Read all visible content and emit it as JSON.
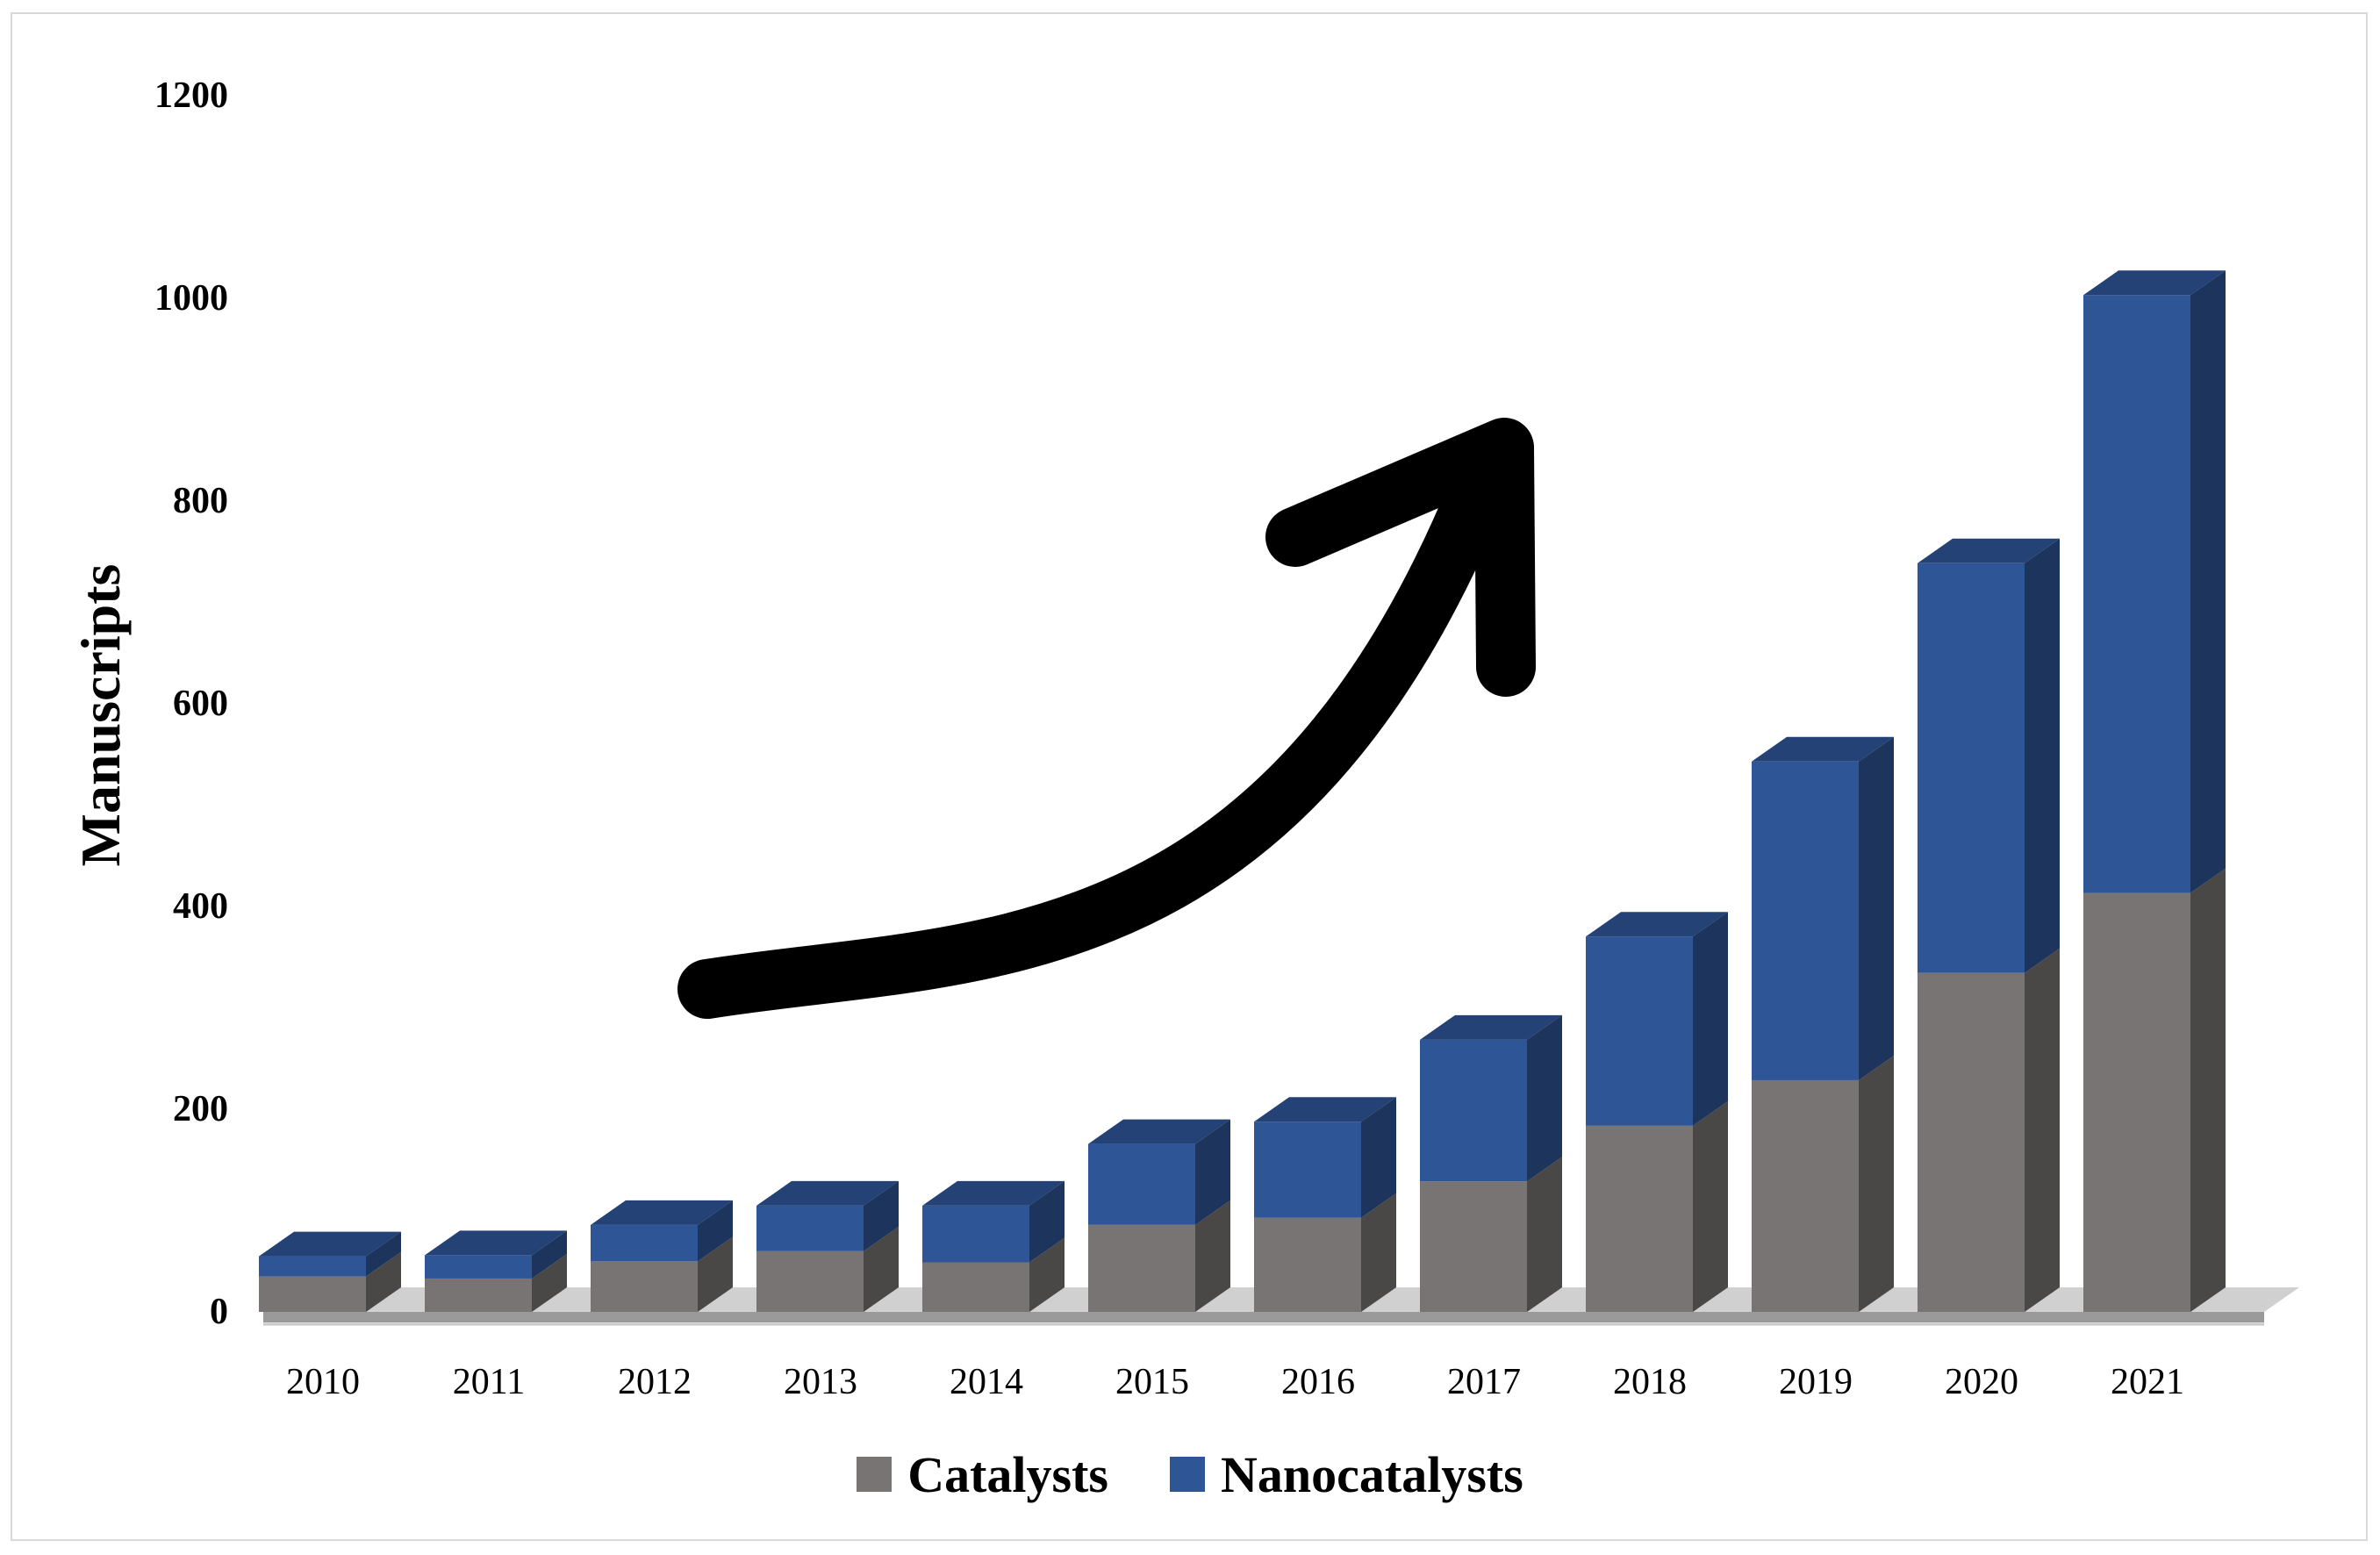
{
  "chart_data": {
    "type": "bar",
    "stacked": true,
    "view": "3d",
    "title": "",
    "xlabel": "",
    "ylabel": "Manuscripts",
    "ylim": [
      0,
      1200
    ],
    "y_ticks": [
      "0",
      "200",
      "400",
      "600",
      "800",
      "1000",
      "1200"
    ],
    "categories": [
      "2010",
      "2011",
      "2012",
      "2013",
      "2014",
      "2015",
      "2016",
      "2017",
      "2018",
      "2019",
      "2020",
      "2021"
    ],
    "series": [
      {
        "name": "Catalysts",
        "color": "#777473",
        "values": [
          35,
          33,
          50,
          60,
          49,
          86,
          93,
          129,
          184,
          229,
          335,
          414
        ]
      },
      {
        "name": "Nanocatalysts",
        "color": "#2e5596",
        "values": [
          20,
          23,
          36,
          45,
          56,
          80,
          95,
          140,
          187,
          315,
          405,
          591
        ]
      }
    ],
    "legend_position": "bottom",
    "grid": false,
    "annotation": "trend-arrow-up"
  }
}
